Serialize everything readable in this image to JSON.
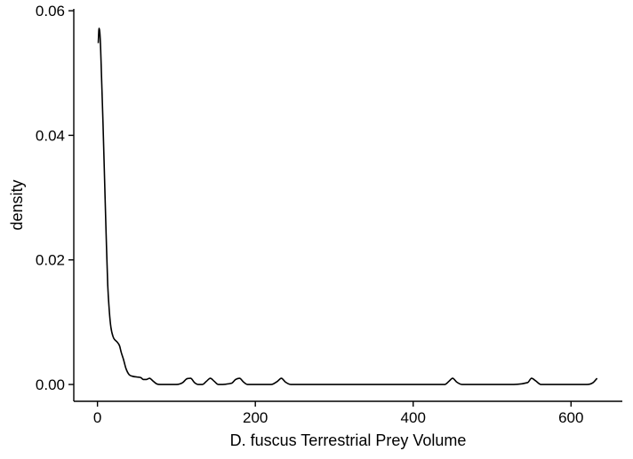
{
  "chart_data": {
    "type": "line",
    "title": "",
    "xlabel": "D. fuscus Terrestrial Prey Volume",
    "ylabel": "density",
    "xlim": [
      -30,
      665
    ],
    "ylim": [
      -0.0027,
      0.0603
    ],
    "grid": false,
    "legend": "none",
    "x_ticks": [
      {
        "value": 0,
        "label": "0"
      },
      {
        "value": 200,
        "label": "200"
      },
      {
        "value": 400,
        "label": "400"
      },
      {
        "value": 600,
        "label": "600"
      }
    ],
    "y_ticks": [
      {
        "value": 0.0,
        "label": "0.00"
      },
      {
        "value": 0.02,
        "label": "0.02"
      },
      {
        "value": 0.04,
        "label": "0.04"
      },
      {
        "value": 0.06,
        "label": "0.06"
      }
    ],
    "series": [
      {
        "color": "#000000",
        "x": [
          1,
          2,
          3,
          4,
          5,
          7,
          9,
          11,
          13,
          15,
          17,
          20,
          25,
          28,
          30,
          33,
          36,
          40,
          45,
          50,
          55,
          58,
          62,
          66,
          70,
          75,
          80,
          100,
          108,
          113,
          118,
          123,
          128,
          133,
          138,
          143,
          148,
          153,
          170,
          175,
          180,
          185,
          190,
          200,
          220,
          228,
          233,
          238,
          245,
          260,
          300,
          350,
          400,
          440,
          446,
          450,
          455,
          462,
          480,
          520,
          545,
          550,
          555,
          562,
          580,
          620,
          628,
          633
        ],
        "values": [
          0.0548,
          0.0572,
          0.0565,
          0.054,
          0.05,
          0.042,
          0.033,
          0.024,
          0.016,
          0.0118,
          0.0092,
          0.0076,
          0.0068,
          0.0062,
          0.0052,
          0.004,
          0.0026,
          0.0016,
          0.0013,
          0.0012,
          0.0011,
          0.0008,
          0.0008,
          0.001,
          0.0006,
          0.0001,
          0.0,
          0.0,
          0.0003,
          0.0009,
          0.001,
          0.0003,
          0.0,
          0.0,
          0.0005,
          0.001,
          0.0005,
          0.0,
          0.0002,
          0.0008,
          0.001,
          0.0004,
          0.0,
          0.0,
          0.0,
          0.0005,
          0.001,
          0.0004,
          0.0,
          0.0,
          0.0,
          0.0,
          0.0,
          0.0,
          0.0006,
          0.001,
          0.0004,
          0.0,
          0.0,
          0.0,
          0.0003,
          0.001,
          0.0006,
          0.0,
          0.0,
          0.0,
          0.0003,
          0.001
        ]
      }
    ]
  }
}
